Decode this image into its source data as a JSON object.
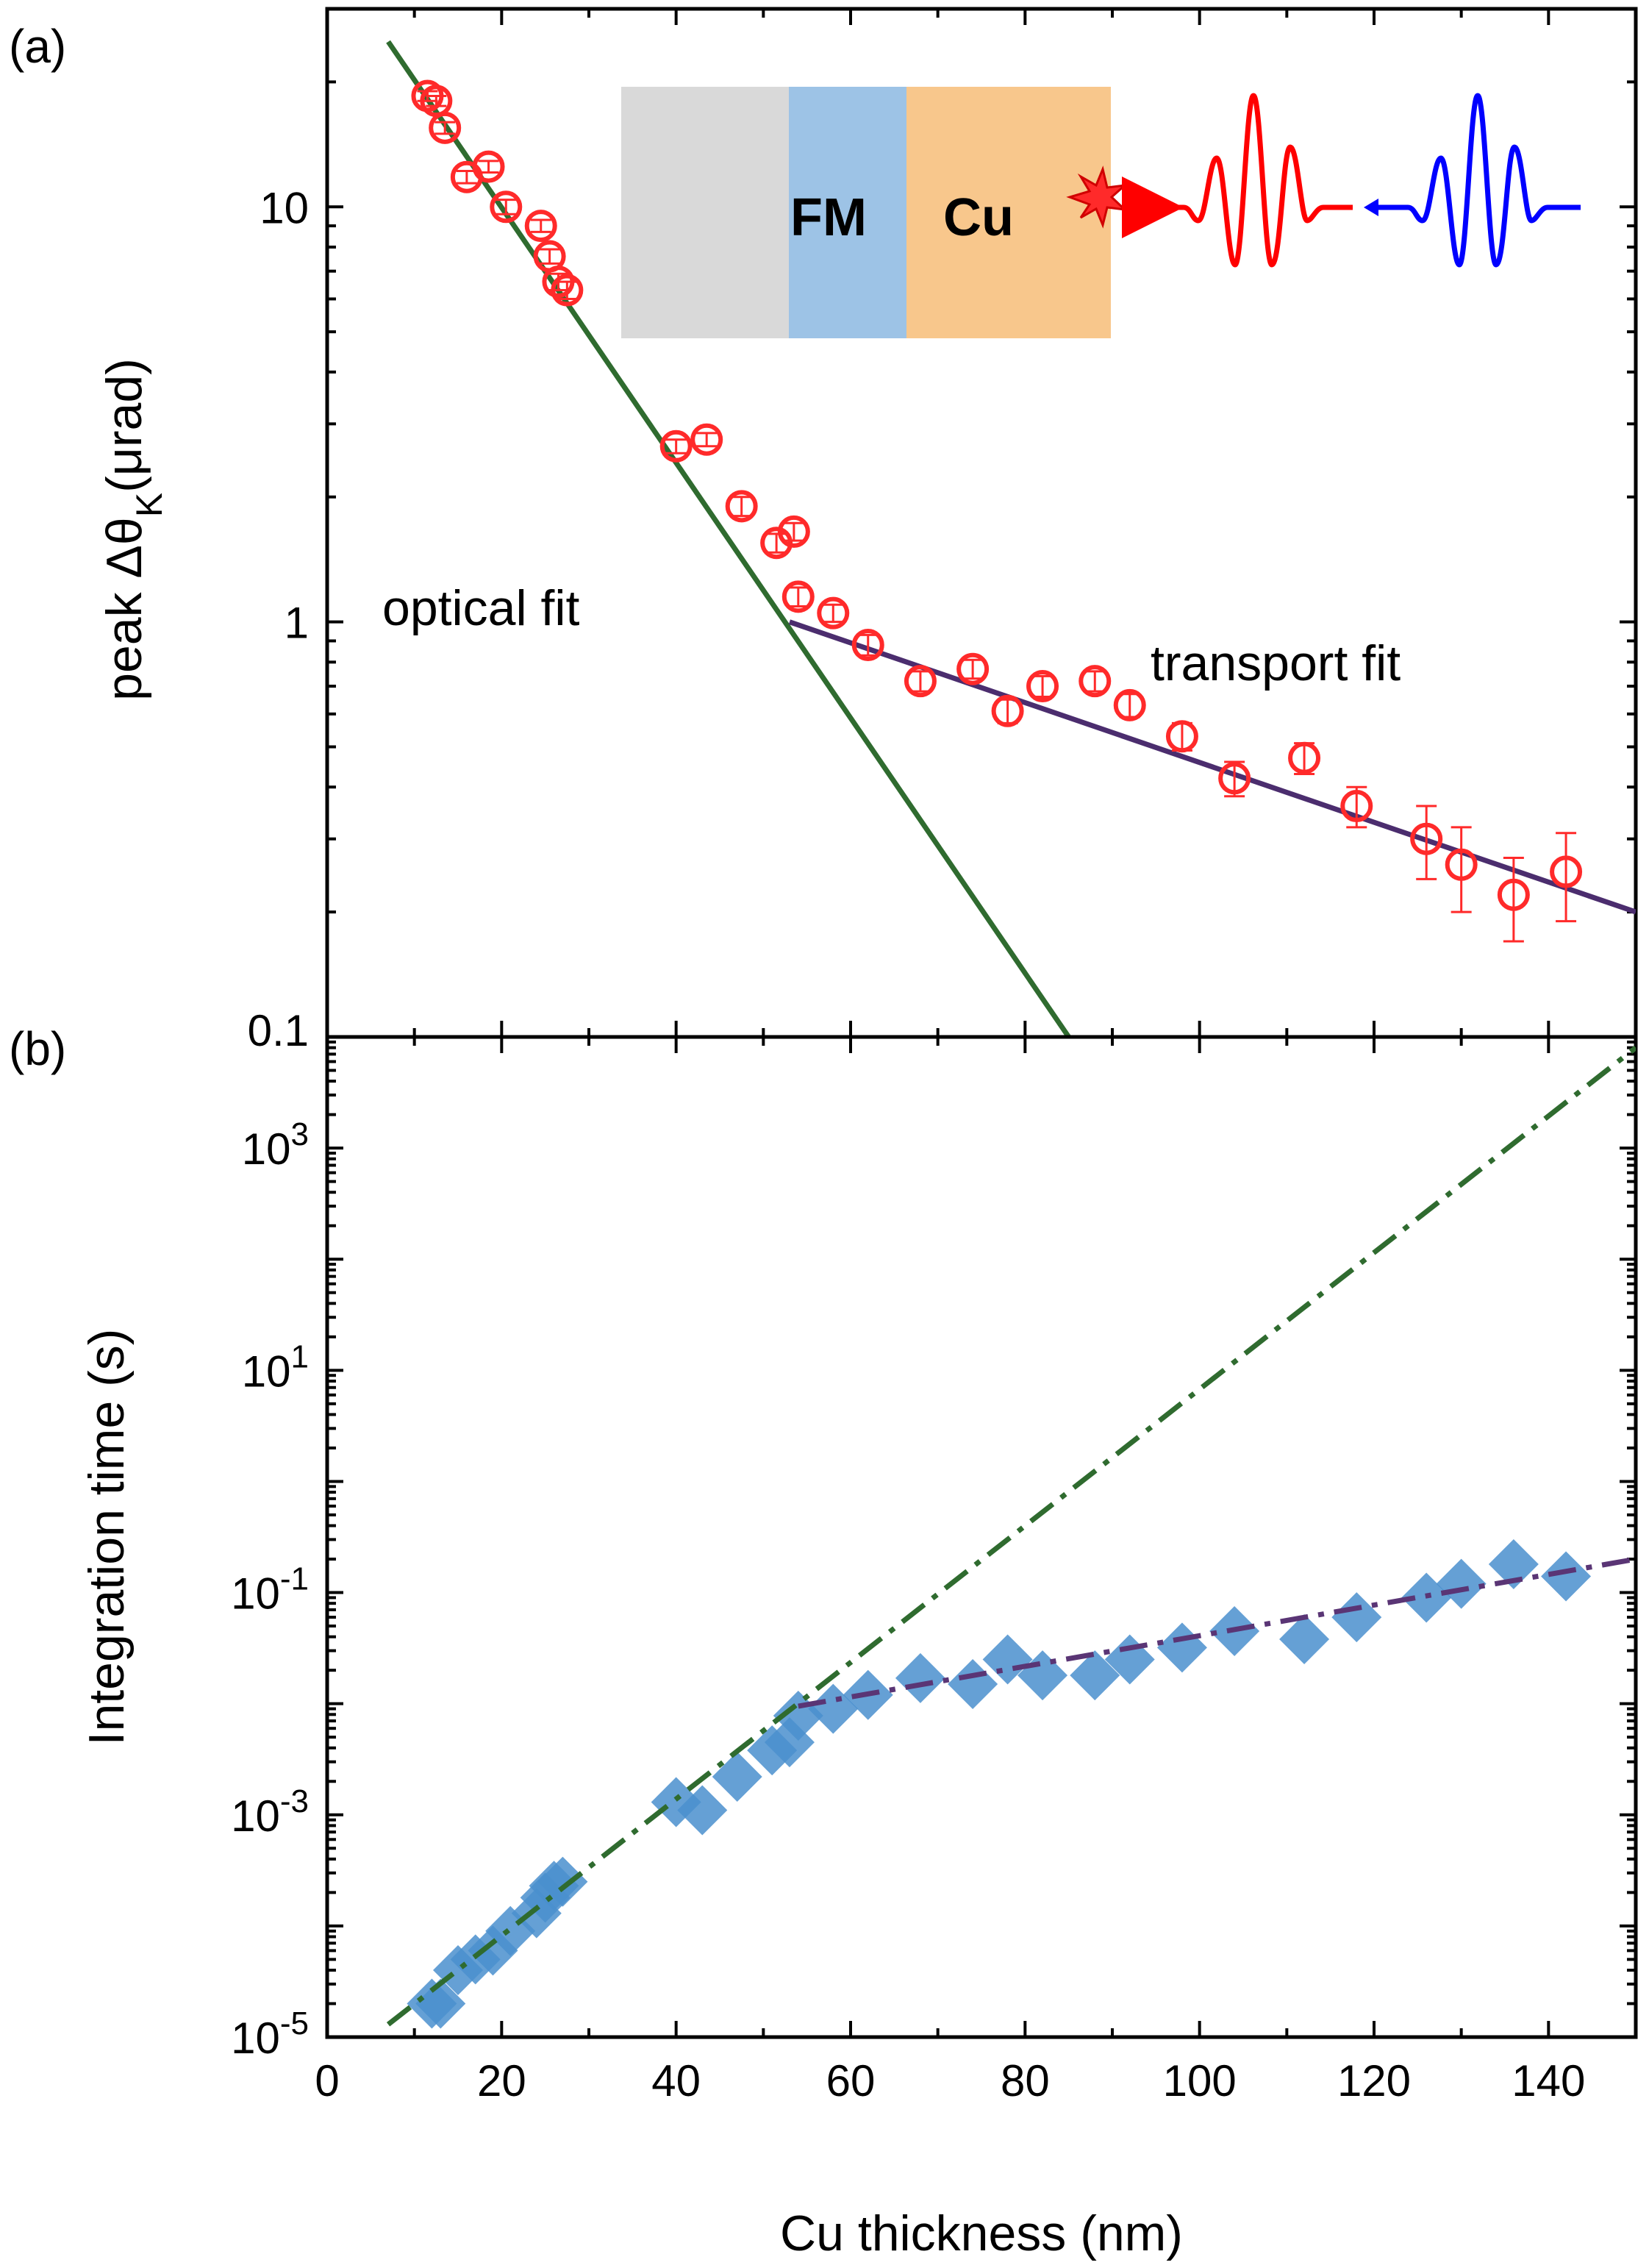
{
  "colors": {
    "optical_fit": "#2f6b2f",
    "transport_fit": "#4b2d6e",
    "kerr_points": "#ff2a2a",
    "time_points": "#4a8fce",
    "optical_dash": "#2f6b2f",
    "transport_dash": "#5a3575",
    "inset_substrate": "#d9d9d9",
    "inset_fm": "#9dc3e6",
    "inset_cu": "#f8c78c",
    "pulse_red": "#ff0000",
    "pulse_blue": "#0000ff"
  },
  "figure": {
    "xlabel": "Cu thickness (nm)",
    "x_ticks": [
      "0",
      "20",
      "40",
      "60",
      "80",
      "100",
      "120",
      "140"
    ]
  },
  "panel_a": {
    "label": "(a)",
    "ylabel_prefix": "peak Δθ",
    "ylabel_sub": "K",
    "ylabel_suffix": "(μrad)",
    "y_ticks": [
      "0.1",
      "1",
      "10"
    ],
    "annotation_optical": "optical fit",
    "annotation_transport": "transport fit",
    "inset": {
      "fm_label": "FM",
      "cu_label": "Cu",
      "icons": [
        "burst-icon",
        "red-pulse-icon",
        "blue-pulse-icon"
      ]
    }
  },
  "panel_b": {
    "label": "(b)",
    "ylabel": "Integration time (s)",
    "y_ticks": [
      {
        "base": "10",
        "exp": "3"
      },
      {
        "base": "10",
        "exp": "1"
      },
      {
        "base": "10",
        "exp": "-1"
      },
      {
        "base": "10",
        "exp": "-3"
      },
      {
        "base": "10",
        "exp": "-5"
      }
    ]
  },
  "chart_data": [
    {
      "type": "scatter",
      "panel": "a",
      "xlabel": "Cu thickness (nm)",
      "ylabel": "peak ΔθK(μrad)",
      "xlim": [
        0,
        150
      ],
      "ylim": [
        0.1,
        30
      ],
      "yscale": "log",
      "grid": false,
      "series": [
        {
          "x": [
            11.5,
            12.5,
            13.5,
            16,
            18.5,
            20.5,
            24.5,
            25.5,
            26.5,
            27.5,
            40,
            43.5,
            47.5,
            51.5,
            53.5,
            54,
            58,
            62,
            68,
            74,
            78,
            82,
            88,
            92,
            98,
            104,
            112,
            118,
            126,
            130,
            136,
            142
          ],
          "y": [
            18.5,
            18.0,
            15.5,
            11.8,
            12.5,
            10.0,
            9.0,
            7.6,
            6.6,
            6.3,
            2.65,
            2.75,
            1.9,
            1.55,
            1.65,
            1.15,
            1.05,
            0.88,
            0.72,
            0.77,
            0.61,
            0.7,
            0.72,
            0.63,
            0.53,
            0.42,
            0.47,
            0.36,
            0.3,
            0.26,
            0.22,
            0.25
          ],
          "yerr": [
            0.5,
            0.5,
            0.5,
            0.4,
            0.4,
            0.4,
            0.3,
            0.3,
            0.3,
            0.3,
            0.1,
            0.1,
            0.1,
            0.08,
            0.08,
            0.06,
            0.05,
            0.05,
            0.04,
            0.04,
            0.04,
            0.04,
            0.04,
            0.04,
            0.04,
            0.04,
            0.04,
            0.04,
            0.06,
            0.06,
            0.05,
            0.06
          ]
        },
        {
          "type": "line",
          "x": [
            7,
            85
          ],
          "y": [
            25,
            0.1
          ]
        },
        {
          "type": "line",
          "x": [
            53,
            150
          ],
          "y": [
            1.0,
            0.2
          ]
        }
      ]
    },
    {
      "type": "scatter",
      "panel": "b",
      "xlabel": "Cu thickness (nm)",
      "ylabel": "Integration time (s)",
      "xlim": [
        0,
        150
      ],
      "ylim": [
        1e-05,
        10000
      ],
      "yscale": "log",
      "grid": false,
      "series": [
        {
          "x": [
            12,
            13,
            15,
            17,
            19,
            21,
            24,
            25,
            26,
            27,
            40,
            43,
            47,
            51,
            53,
            54,
            58,
            62,
            68,
            74,
            78,
            82,
            88,
            92,
            98,
            104,
            112,
            118,
            126,
            130,
            136,
            142
          ],
          "y": [
            2e-05,
            2e-05,
            4e-05,
            5e-05,
            6e-05,
            9e-05,
            0.00013,
            0.00018,
            0.00023,
            0.00025,
            0.0013,
            0.0011,
            0.0022,
            0.0038,
            0.0045,
            0.0078,
            0.009,
            0.012,
            0.017,
            0.015,
            0.025,
            0.018,
            0.018,
            0.025,
            0.032,
            0.045,
            0.038,
            0.06,
            0.09,
            0.12,
            0.18,
            0.14
          ]
        },
        {
          "type": "line",
          "x": [
            7,
            150
          ],
          "y": [
            1.3e-05,
            8000
          ]
        },
        {
          "type": "line",
          "x": [
            54,
            150
          ],
          "y": [
            0.0095,
            0.2
          ]
        }
      ]
    }
  ]
}
